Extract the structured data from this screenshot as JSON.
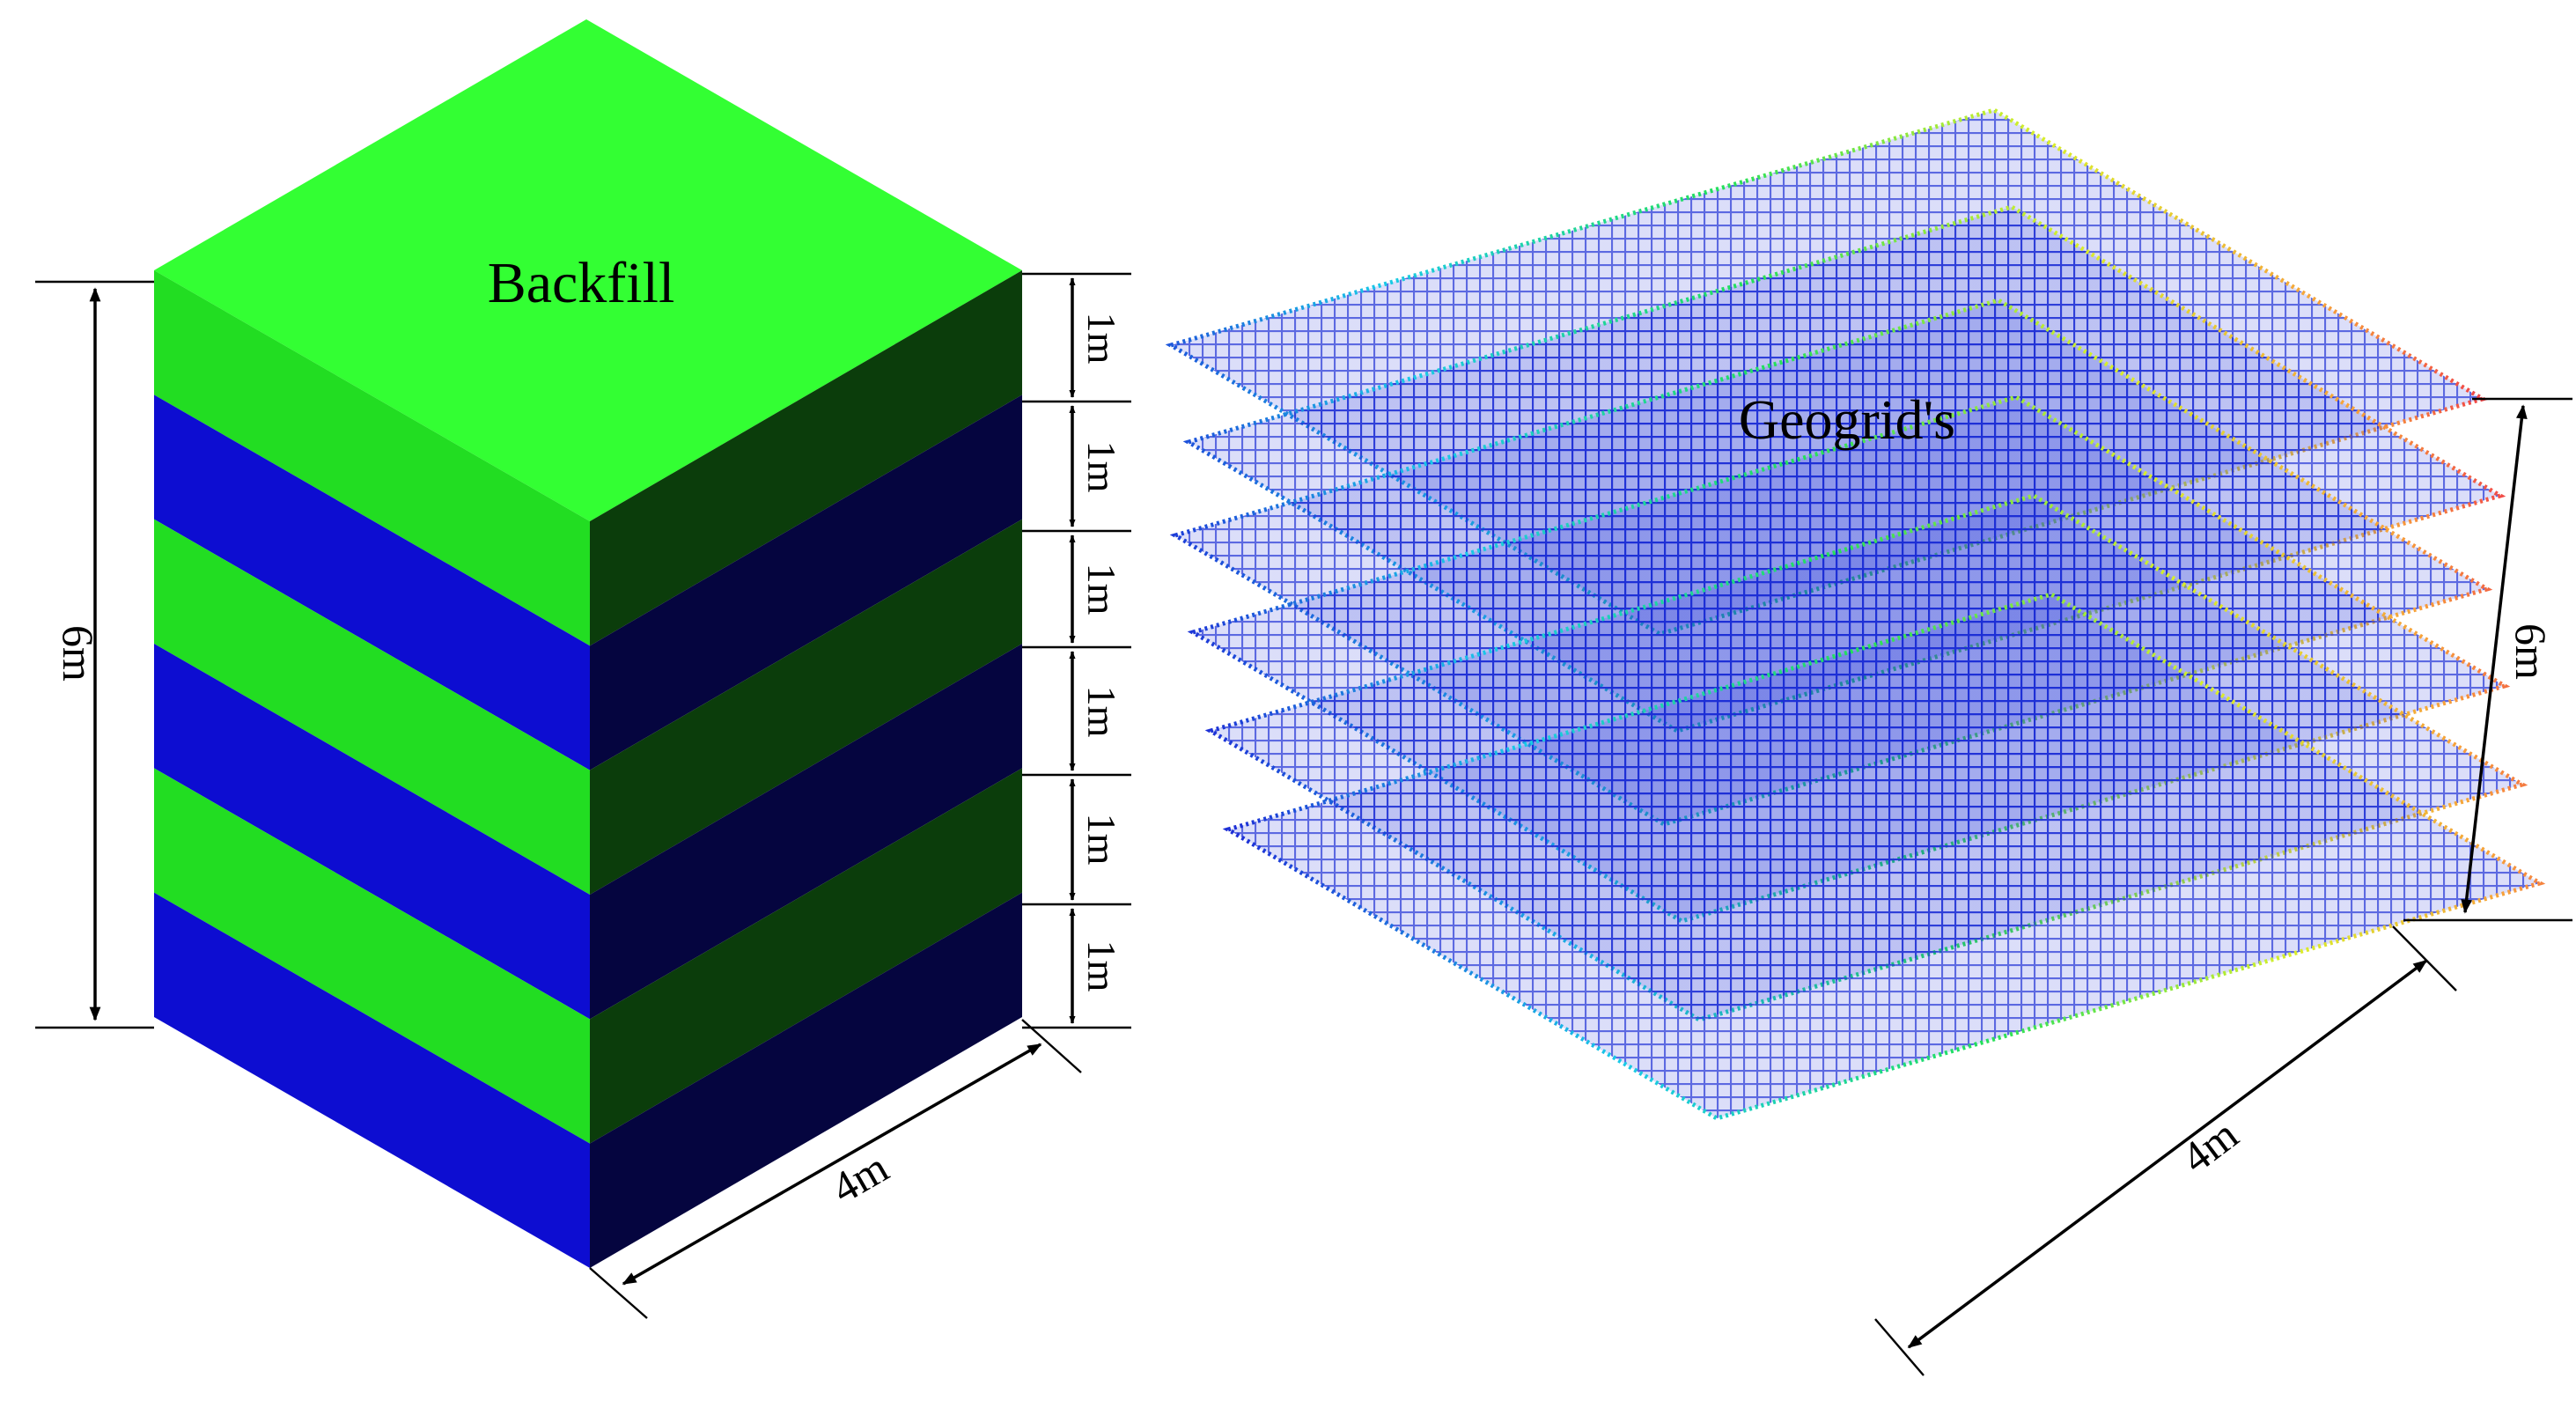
{
  "labels": {
    "backfill": "Backfill",
    "geogrids": "Geogrid's"
  },
  "dimensions": {
    "block_height": "6m",
    "block_width": "4m",
    "grid_height": "6m",
    "grid_width": "4m",
    "layer_thickness": [
      "1m",
      "1m",
      "1m",
      "1m",
      "1m",
      "1m"
    ]
  },
  "colors": {
    "backfill_light": "#22dd22",
    "backfill_top": "#33ff33",
    "backfill_dark": "#0b3d0b",
    "geogrid_layer_light": "#0d0dd1",
    "geogrid_layer_dark": "#05053f"
  },
  "grid_layer_count": 6
}
